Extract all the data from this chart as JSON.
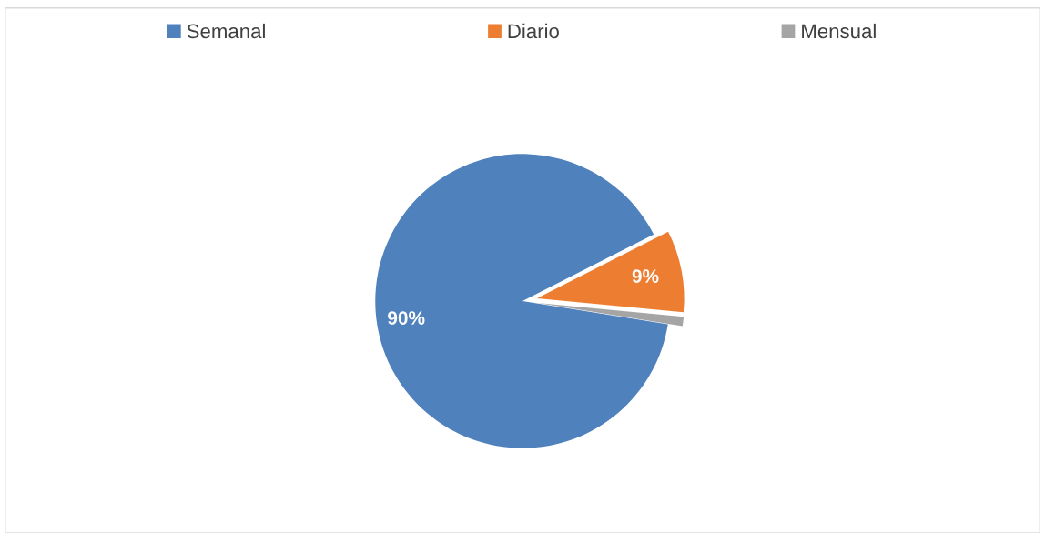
{
  "chart_data": {
    "type": "pie",
    "categories": [
      "Semanal",
      "Diario",
      "Mensual"
    ],
    "values": [
      90,
      9,
      1
    ],
    "colors": [
      "#4f81bd",
      "#ed7d31",
      "#a5a5a5"
    ],
    "value_labels": [
      "90%",
      "9%",
      null
    ],
    "legend": "top"
  }
}
